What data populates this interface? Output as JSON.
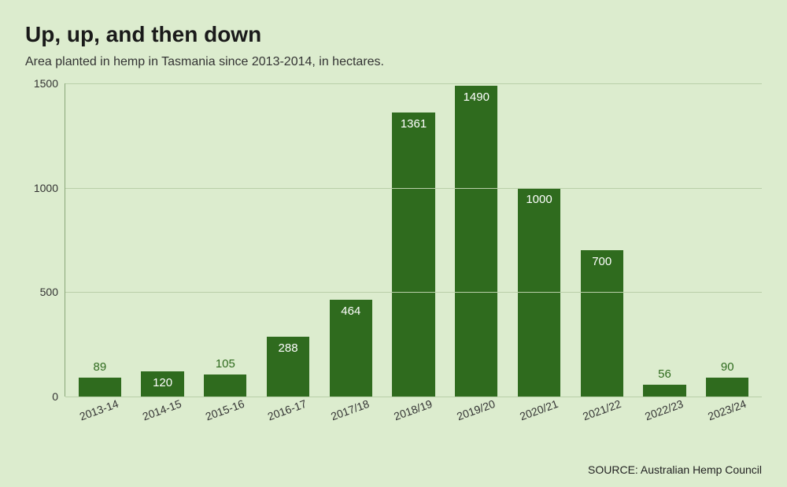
{
  "background_color": "#dcecce",
  "text_color": "#222222",
  "label_outside_color": "#2f6b1e",
  "title": {
    "text": "Up, up, and then down",
    "fontsize": 28,
    "fontweight": "700",
    "color": "#1a1a1a"
  },
  "subtitle": {
    "text": "Area planted in hemp in Tasmania since 2013-2014, in hectares.",
    "fontsize": 16,
    "color": "#333333"
  },
  "source": {
    "text": "SOURCE: Australian Hemp Council",
    "fontsize": 14,
    "color": "#222222"
  },
  "chart": {
    "type": "bar",
    "categories": [
      "2013-14",
      "2014-15",
      "2015-16",
      "2016-17",
      "2017/18",
      "2018/19",
      "2019/20",
      "2020/21",
      "2021/22",
      "2022/23",
      "2023/24"
    ],
    "values": [
      89,
      120,
      105,
      288,
      464,
      1361,
      1490,
      1000,
      700,
      56,
      90
    ],
    "value_label_position": [
      "outside",
      "inside",
      "outside",
      "inside",
      "inside",
      "inside",
      "inside",
      "inside",
      "inside",
      "outside",
      "outside"
    ],
    "bar_color": "#2f6b1e",
    "bar_width": 0.68,
    "ylim": [
      0,
      1500
    ],
    "ytick_step": 500,
    "yticks": [
      0,
      500,
      1000,
      1500
    ],
    "grid_color": "#b9cfa8",
    "axis_line_color": "#8aa779",
    "tick_label_fontsize": 14,
    "tick_label_color": "#333333",
    "value_label_fontsize": 15,
    "value_label_inside_color": "#ffffff",
    "value_label_outside_color": "#2f6b1e",
    "x_tick_rotation_deg": -20
  }
}
